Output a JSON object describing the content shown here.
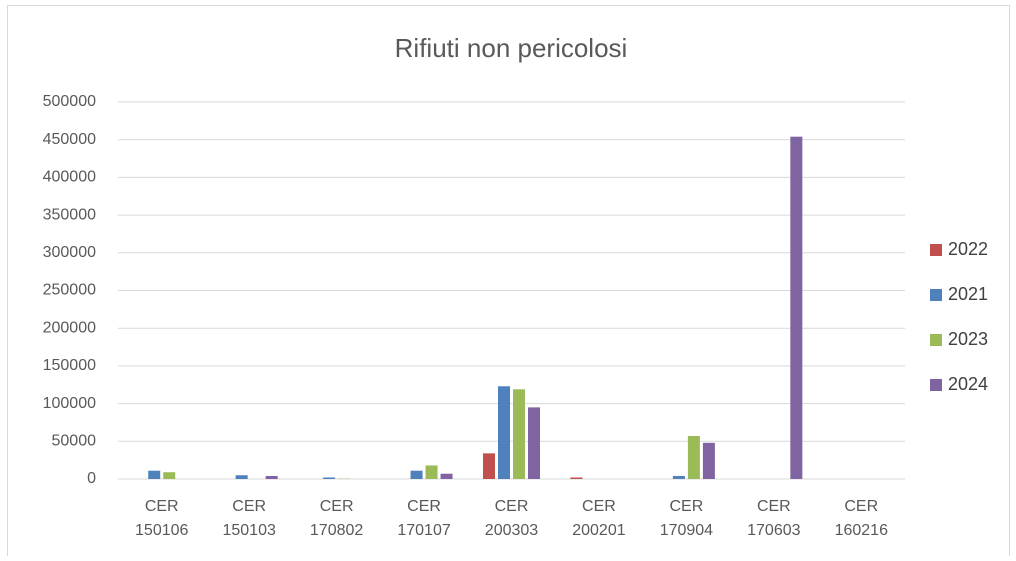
{
  "chart_data": {
    "type": "bar",
    "title": "Rifiuti non pericolosi",
    "categories": [
      "CER 150106",
      "CER 150103",
      "CER 170802",
      "CER 170107",
      "CER 200303",
      "CER 200201",
      "CER 170904",
      "CER 170603",
      "CER 160216"
    ],
    "series": [
      {
        "name": "2022",
        "color": "#c0504d",
        "values": [
          0,
          0,
          0,
          0,
          34000,
          2000,
          0,
          0,
          0
        ]
      },
      {
        "name": "2021",
        "color": "#4f81bd",
        "values": [
          11000,
          5000,
          2000,
          11000,
          123000,
          0,
          4000,
          0,
          0
        ]
      },
      {
        "name": "2023",
        "color": "#9bbb59",
        "values": [
          9000,
          0,
          500,
          18000,
          119000,
          0,
          57000,
          0,
          0
        ]
      },
      {
        "name": "2024",
        "color": "#8064a2",
        "values": [
          0,
          4000,
          0,
          7000,
          95000,
          0,
          48000,
          454000,
          0
        ]
      }
    ],
    "ylim": [
      0,
      500000
    ],
    "yticks": [
      0,
      50000,
      100000,
      150000,
      200000,
      250000,
      300000,
      350000,
      400000,
      450000,
      500000
    ],
    "grid": true,
    "legend": "right"
  }
}
